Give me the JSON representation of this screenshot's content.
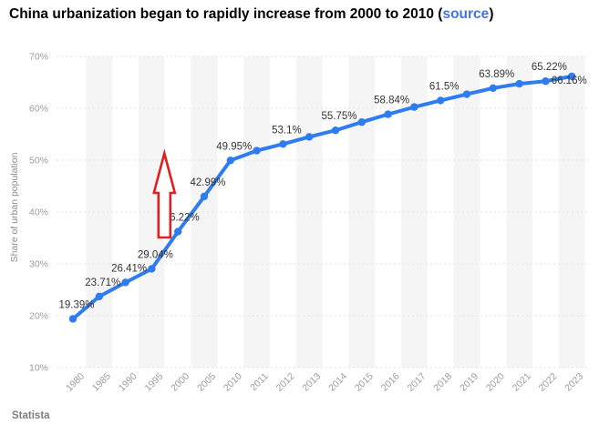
{
  "title": {
    "prefix": "China urbanization began to rapidly increase from 2000 to 2010 (",
    "link": "source",
    "suffix": ")"
  },
  "footer": {
    "brand": "Statista"
  },
  "colors": {
    "line": "#2e7cf0",
    "data_label": "#333333",
    "axis_text": "#9b9b9b",
    "y_axis_title": "#8c8c8c",
    "grid": "#e2e2e2",
    "band": "#f5f5f5",
    "link": "#4374e4",
    "arrow": "#e02020",
    "title_text": "#000000",
    "footer_text": "#7d7d7d"
  },
  "chart_data": {
    "type": "line",
    "title": "China urbanization began to rapidly increase from 2000 to 2010",
    "xlabel": "",
    "ylabel": "Share of urban population",
    "ylim": [
      10,
      70
    ],
    "yticks": [
      10,
      20,
      30,
      40,
      50,
      60,
      70
    ],
    "ytick_labels": [
      "10%",
      "20%",
      "30%",
      "40%",
      "50%",
      "60%",
      "70%"
    ],
    "grid": "horizontal dashed",
    "legend": "none",
    "plot_bands": "alternating vertical stripes centered on every second category",
    "categories": [
      "1980",
      "1985",
      "1990",
      "1995",
      "2000",
      "2005",
      "2010",
      "2011",
      "2012",
      "2013",
      "2014",
      "2015",
      "2016",
      "2017",
      "2018",
      "2019",
      "2020",
      "2021",
      "2022",
      "2023"
    ],
    "series": [
      {
        "name": "Share of urban population",
        "values": [
          19.39,
          23.71,
          26.41,
          29.04,
          36.22,
          42.99,
          49.95,
          51.83,
          53.1,
          54.49,
          55.75,
          57.33,
          58.84,
          60.24,
          61.5,
          62.71,
          63.89,
          64.72,
          65.22,
          66.16
        ],
        "point_labels": [
          "19.39%",
          "23.71%",
          "26.41%",
          "29.04%",
          "36.22%",
          "42.99%",
          "49.95%",
          null,
          "53.1%",
          null,
          "55.75%",
          null,
          "58.84%",
          null,
          "61.5%",
          null,
          "63.89%",
          null,
          "65.22%",
          "66.16%"
        ]
      }
    ],
    "annotation": {
      "shape": "up-block-arrow",
      "between_categories": [
        "1995",
        "2000"
      ],
      "color": "#e02020"
    }
  }
}
